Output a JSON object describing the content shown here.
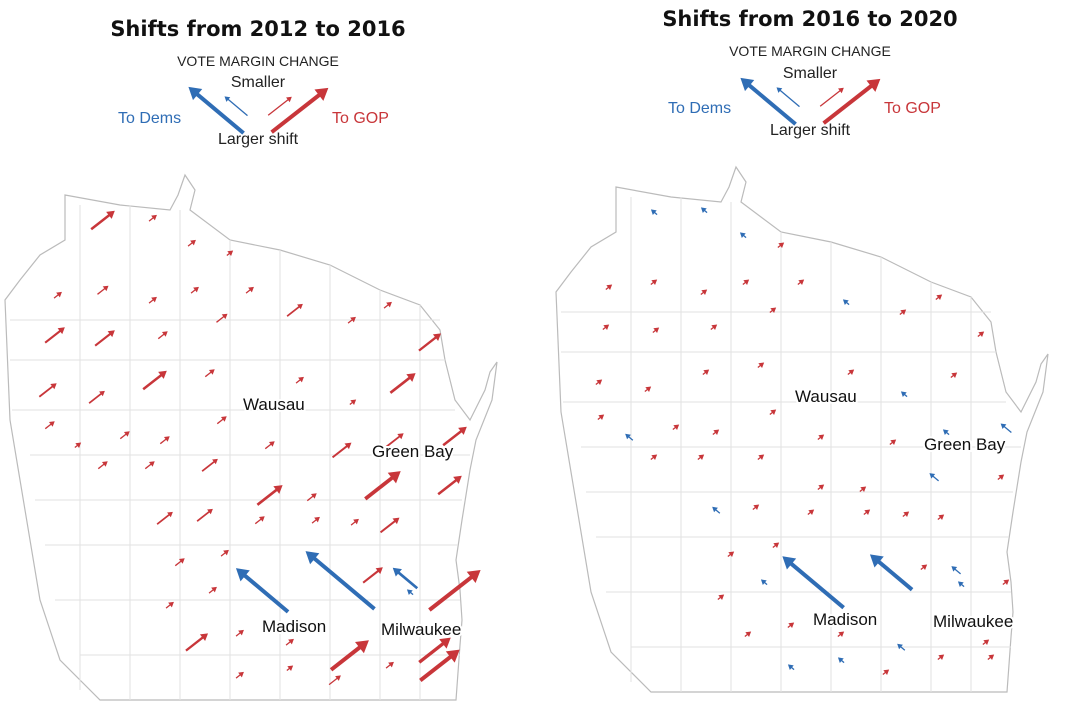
{
  "colors": {
    "dem": "#2f6db5",
    "gop": "#c8363a"
  },
  "legend": {
    "heading": "VOTE MARGIN CHANGE",
    "smaller": "Smaller",
    "larger": "Larger shift",
    "to_dems": "To Dems",
    "to_gop": "To GOP"
  },
  "maps": [
    {
      "title": "Shifts from 2012 to 2016",
      "cities": [
        "Wausau",
        "Green Bay",
        "Madison",
        "Milwaukee"
      ],
      "county_shifts": [
        30,
        10,
        10,
        8,
        10,
        14,
        10,
        10,
        10,
        20,
        10,
        10,
        28,
        25,
        25,
        12,
        14,
        22,
        20,
        30,
        12,
        10,
        8,
        32,
        12,
        8,
        12,
        12,
        12,
        12,
        24,
        22,
        30,
        12,
        12,
        20,
        32,
        12,
        45,
        30,
        20,
        20,
        12,
        10,
        10,
        24,
        12,
        10,
        -68,
        -90,
        25,
        -32,
        -8,
        65,
        10,
        10,
        28,
        10,
        10,
        48,
        40,
        10,
        8,
        15,
        10,
        50
      ]
    },
    {
      "title": "Shifts from 2016 to 2020",
      "cities": [
        "Wausau",
        "Green Bay",
        "Madison",
        "Milwaukee"
      ],
      "county_shifts": [
        -8,
        -8,
        -8,
        8,
        8,
        8,
        8,
        8,
        8,
        -8,
        8,
        8,
        8,
        8,
        8,
        8,
        8,
        8,
        8,
        8,
        8,
        8,
        -8,
        8,
        8,
        -10,
        8,
        8,
        8,
        8,
        8,
        -8,
        -14,
        8,
        8,
        8,
        8,
        8,
        -12,
        8,
        -10,
        8,
        8,
        8,
        8,
        8,
        8,
        8,
        -80,
        -55,
        8,
        -12,
        -8,
        8,
        8,
        -8,
        8,
        8,
        8,
        -10,
        8,
        -8,
        -8,
        8,
        8,
        8
      ]
    }
  ]
}
